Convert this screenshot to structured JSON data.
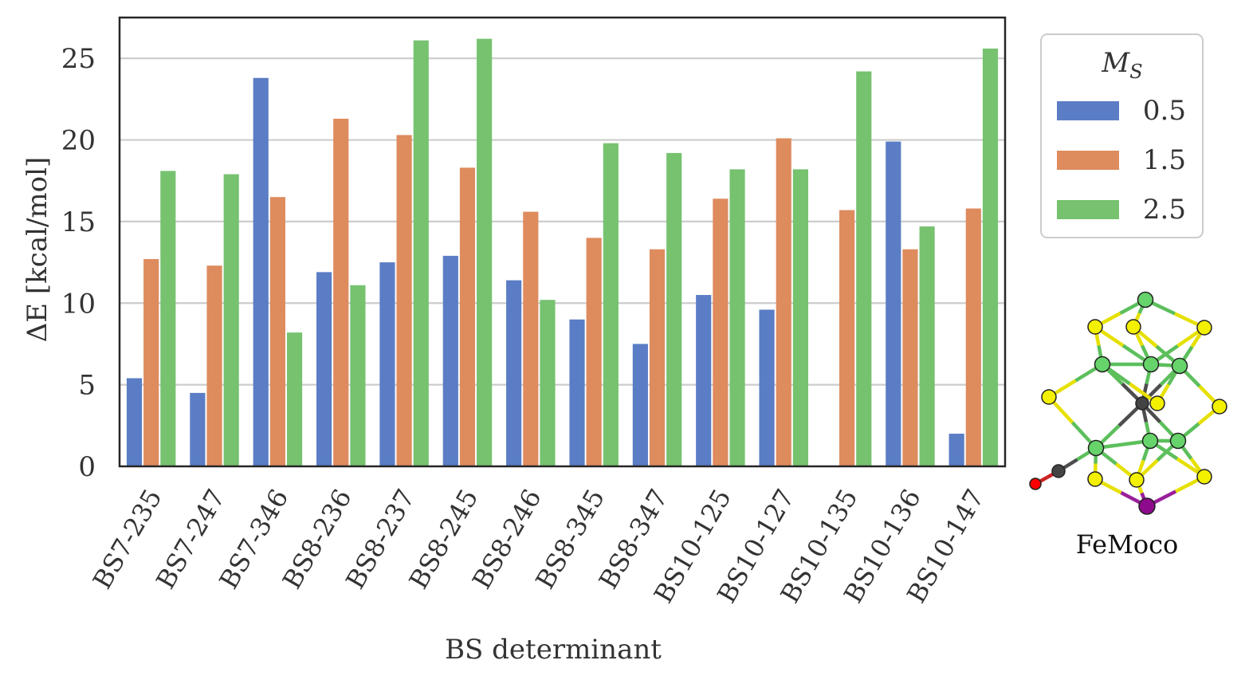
{
  "chart_data": {
    "type": "bar",
    "xlabel": "BS determinant",
    "ylabel": "ΔE [kcal/mol]",
    "ylim": [
      0,
      27.5
    ],
    "yticks": [
      0,
      5,
      10,
      15,
      20,
      25
    ],
    "grid": true,
    "legend": {
      "title": "M_S",
      "placement": "right"
    },
    "categories": [
      "BS7-235",
      "BS7-247",
      "BS7-346",
      "BS8-236",
      "BS8-237",
      "BS8-245",
      "BS8-246",
      "BS8-345",
      "BS8-347",
      "BS10-125",
      "BS10-127",
      "BS10-135",
      "BS10-136",
      "BS10-147"
    ],
    "series": [
      {
        "name": "0.5",
        "color": "#5a7dc5",
        "values": [
          5.4,
          4.5,
          23.8,
          11.9,
          12.5,
          12.9,
          11.4,
          9.0,
          7.5,
          10.5,
          9.6,
          0.0,
          19.9,
          2.0
        ]
      },
      {
        "name": "1.5",
        "color": "#de8b5e",
        "values": [
          12.7,
          12.3,
          16.5,
          21.3,
          20.3,
          18.3,
          15.6,
          14.0,
          13.3,
          16.4,
          20.1,
          15.7,
          13.3,
          15.8
        ]
      },
      {
        "name": "2.5",
        "color": "#76c26f",
        "values": [
          18.1,
          17.9,
          8.2,
          11.1,
          26.1,
          26.2,
          10.2,
          19.8,
          19.2,
          18.2,
          18.2,
          24.2,
          14.7,
          25.6
        ]
      }
    ]
  },
  "molecule": {
    "label": "FeMoco"
  }
}
